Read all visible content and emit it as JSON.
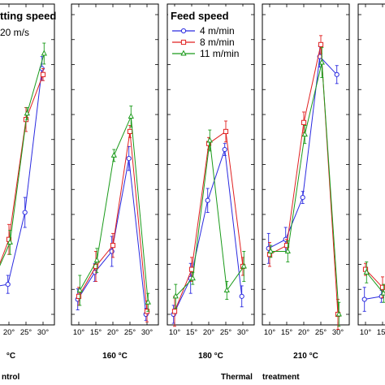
{
  "chart_data": {
    "type": "line",
    "x_ticks": [
      "10°",
      "15°",
      "20°",
      "25°",
      "30°"
    ],
    "panels": [
      {
        "label": "°C",
        "series": [
          {
            "name": "4 m/min",
            "y": [
              0.07,
              0.09,
              0.1,
              0.34,
              0.82
            ]
          },
          {
            "name": "8 m/min",
            "y": [
              0.06,
              0.1,
              0.25,
              0.65,
              0.8
            ]
          },
          {
            "name": "11 m/min",
            "y": [
              0.07,
              0.11,
              0.24,
              0.67,
              0.87
            ]
          }
        ]
      },
      {
        "label": "160 °C",
        "series": [
          {
            "name": "4 m/min",
            "y": [
              0.05,
              0.14,
              0.21,
              0.52,
              0.0
            ]
          },
          {
            "name": "8 m/min",
            "y": [
              0.06,
              0.16,
              0.23,
              0.61,
              0.01
            ]
          },
          {
            "name": "11 m/min",
            "y": [
              0.08,
              0.18,
              0.53,
              0.66,
              0.04
            ]
          }
        ]
      },
      {
        "label": "180 °C",
        "series": [
          {
            "name": "4 m/min",
            "y": [
              0.0,
              0.12,
              0.38,
              0.55,
              0.06
            ]
          },
          {
            "name": "8 m/min",
            "y": [
              0.01,
              0.15,
              0.57,
              0.61,
              0.16
            ]
          },
          {
            "name": "11 m/min",
            "y": [
              0.06,
              0.12,
              0.58,
              0.08,
              0.16
            ]
          }
        ]
      },
      {
        "label": "210 °C",
        "series": [
          {
            "name": "4 m/min",
            "y": [
              0.22,
              0.25,
              0.39,
              0.86,
              0.8
            ]
          },
          {
            "name": "8 m/min",
            "y": [
              0.2,
              0.23,
              0.64,
              0.9,
              0.0
            ]
          },
          {
            "name": "11 m/min",
            "y": [
              0.21,
              0.21,
              0.6,
              0.84,
              0.0
            ]
          }
        ]
      },
      {
        "label": "",
        "series": [
          {
            "name": "4 m/min",
            "y": [
              0.05,
              0.06
            ]
          },
          {
            "name": "8 m/min",
            "y": [
              0.15,
              0.09
            ]
          },
          {
            "name": "11 m/min",
            "y": [
              0.14,
              0.07
            ]
          }
        ]
      }
    ],
    "legend": {
      "title": "Feed speed",
      "placement": "top"
    },
    "grid": false
  },
  "colors": {
    "4 m/min": "#2a2ae0",
    "8 m/min": "#e02020",
    "11 m/min": "#1a9a1a"
  },
  "texts": {
    "cutting_speed_title": "tting speed",
    "cutting_speed_value": "20 m/s",
    "xlabel_left": "ntrol",
    "xlabel_thermal": "Thermal",
    "xlabel_treatment": "treatment"
  }
}
